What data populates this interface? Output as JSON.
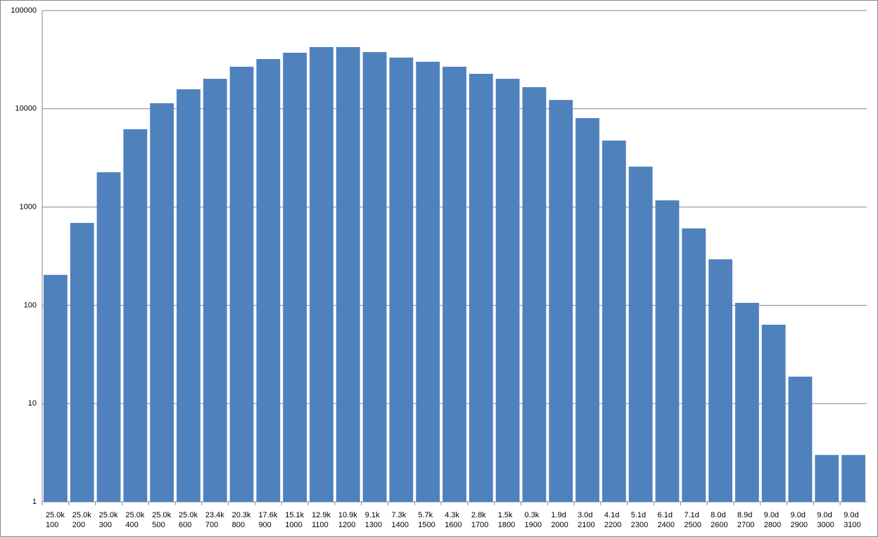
{
  "chart_data": {
    "type": "bar",
    "color": "#4f81bd",
    "log_scale": true,
    "grid": true,
    "ylim": [
      1,
      100000
    ],
    "yticks": [
      1,
      10,
      100,
      1000,
      10000,
      100000
    ],
    "categories": [
      [
        "25.0k",
        "100"
      ],
      [
        "25.0k",
        "200"
      ],
      [
        "25.0k",
        "300"
      ],
      [
        "25.0k",
        "400"
      ],
      [
        "25.0k",
        "500"
      ],
      [
        "25.0k",
        "600"
      ],
      [
        "23.4k",
        "700"
      ],
      [
        "20.3k",
        "800"
      ],
      [
        "17.6k",
        "900"
      ],
      [
        "15.1k",
        "1000"
      ],
      [
        "12.9k",
        "1100"
      ],
      [
        "10.9k",
        "1200"
      ],
      [
        "9.1k",
        "1300"
      ],
      [
        "7.3k",
        "1400"
      ],
      [
        "5.7k",
        "1500"
      ],
      [
        "4.3k",
        "1600"
      ],
      [
        "2.8k",
        "1700"
      ],
      [
        "1.5k",
        "1800"
      ],
      [
        "0.3k",
        "1900"
      ],
      [
        "1.9d",
        "2000"
      ],
      [
        "3.0d",
        "2100"
      ],
      [
        "4.1d",
        "2200"
      ],
      [
        "5.1d",
        "2300"
      ],
      [
        "6.1d",
        "2400"
      ],
      [
        "7.1d",
        "2500"
      ],
      [
        "8.0d",
        "2600"
      ],
      [
        "8.9d",
        "2700"
      ],
      [
        "9.0d",
        "2800"
      ],
      [
        "9.0d",
        "2900"
      ],
      [
        "9.0d",
        "3000"
      ],
      [
        "9.0d",
        "3100"
      ]
    ],
    "values": [
      204,
      690,
      2260,
      6200,
      11400,
      15800,
      20200,
      26800,
      32100,
      37200,
      42500,
      42500,
      37800,
      33200,
      30100,
      26800,
      22700,
      20200,
      16600,
      12300,
      8050,
      4750,
      2580,
      1170,
      607,
      294,
      106,
      63.5,
      18.8,
      3,
      3
    ]
  }
}
